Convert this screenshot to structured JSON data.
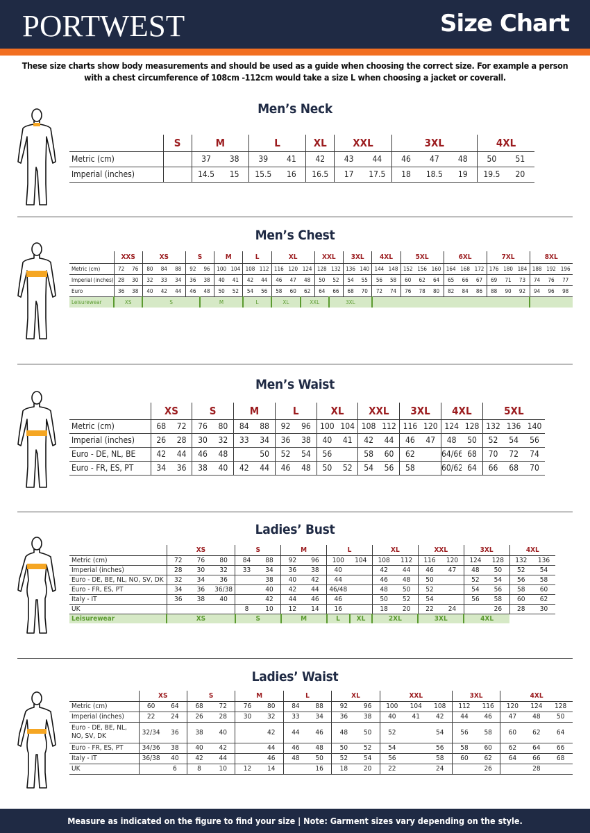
{
  "header": {
    "logo": "PORTWEST",
    "title": "Size Chart"
  },
  "intro": "These size charts show body measurements and should be used as a guide when choosing the correct size. For example a person with a chest circumference of 108cm -112cm would take a size L when choosing a jacket or coverall.",
  "colors": {
    "navy": "#1f2a44",
    "orange": "#f26f21",
    "size_red": "#9b1b1e",
    "leisure_green": "#5a9a2f",
    "leisure_bg": "#d6e9c6",
    "figure_band": "#f5a623"
  },
  "tables": [
    {
      "title": "Men’s Neck",
      "figure": "male-figure-neck",
      "groups": [
        {
          "label": "S",
          "span": 1
        },
        {
          "label": "M",
          "span": 2
        },
        {
          "label": "L",
          "span": 2
        },
        {
          "label": "XL",
          "span": 1
        },
        {
          "label": "XXL",
          "span": 2
        },
        {
          "label": "3XL",
          "span": 3
        },
        {
          "label": "4XL",
          "span": 2
        }
      ],
      "rows": [
        {
          "label": "Metric  (cm)",
          "cells": [
            "",
            "37",
            "38",
            "39",
            "41",
            "42",
            "43",
            "44",
            "46",
            "47",
            "48",
            "50",
            "51"
          ]
        },
        {
          "label": "Imperial (inches)",
          "cells": [
            "",
            "14.5",
            "15",
            "15.5",
            "16",
            "16.5",
            "17",
            "17.5",
            "18",
            "18.5",
            "19",
            "19.5",
            "20"
          ]
        }
      ]
    },
    {
      "title": "Men’s Chest",
      "figure": "male-figure-chest",
      "groups": [
        {
          "label": "XXS",
          "span": 2
        },
        {
          "label": "XS",
          "span": 3
        },
        {
          "label": "S",
          "span": 2
        },
        {
          "label": "M",
          "span": 2
        },
        {
          "label": "L",
          "span": 2
        },
        {
          "label": "XL",
          "span": 3
        },
        {
          "label": "XXL",
          "span": 2
        },
        {
          "label": "3XL",
          "span": 2
        },
        {
          "label": "4XL",
          "span": 2
        },
        {
          "label": "5XL",
          "span": 3
        },
        {
          "label": "6XL",
          "span": 3
        },
        {
          "label": "7XL",
          "span": 3
        },
        {
          "label": "8XL",
          "span": 3
        }
      ],
      "rows": [
        {
          "label": "Metric (cm)",
          "cells": [
            "72",
            "76",
            "80",
            "84",
            "88",
            "92",
            "96",
            "100",
            "104",
            "108",
            "112",
            "116",
            "120",
            "124",
            "128",
            "132",
            "136",
            "140",
            "144",
            "148",
            "152",
            "156",
            "160",
            "164",
            "168",
            "172",
            "176",
            "180",
            "184",
            "188",
            "192",
            "196"
          ]
        },
        {
          "label": "Imperial (inches)",
          "cells": [
            "28",
            "30",
            "32",
            "33",
            "34",
            "36",
            "38",
            "40",
            "41",
            "42",
            "44",
            "46",
            "47",
            "48",
            "50",
            "52",
            "54",
            "55",
            "56",
            "58",
            "60",
            "62",
            "64",
            "65",
            "66",
            "67",
            "69",
            "71",
            "73",
            "74",
            "76",
            "77"
          ]
        },
        {
          "label": "Euro",
          "cells": [
            "36",
            "38",
            "40",
            "42",
            "44",
            "46",
            "48",
            "50",
            "52",
            "54",
            "56",
            "58",
            "60",
            "62",
            "64",
            "66",
            "68",
            "70",
            "72",
            "74",
            "76",
            "78",
            "80",
            "82",
            "84",
            "86",
            "88",
            "90",
            "92",
            "94",
            "96",
            "98"
          ]
        }
      ],
      "leisurewear": {
        "label": "Leisurewear",
        "groups": [
          {
            "label": "XS",
            "span": 2
          },
          {
            "label": "S",
            "span": 4
          },
          {
            "label": "M",
            "span": 3
          },
          {
            "label": "L",
            "span": 2
          },
          {
            "label": "XL",
            "span": 2
          },
          {
            "label": "XXL",
            "span": 2
          },
          {
            "label": "3XL",
            "span": 3
          },
          {
            "label": "",
            "span": 11
          },
          {
            "label": "",
            "span": 3
          }
        ]
      }
    },
    {
      "title": "Men’s Waist",
      "figure": "male-figure-waist",
      "groups": [
        {
          "label": "XS",
          "span": 2
        },
        {
          "label": "S",
          "span": 2
        },
        {
          "label": "M",
          "span": 2
        },
        {
          "label": "L",
          "span": 2
        },
        {
          "label": "XL",
          "span": 2
        },
        {
          "label": "XXL",
          "span": 2
        },
        {
          "label": "3XL",
          "span": 2
        },
        {
          "label": "4XL",
          "span": 2
        },
        {
          "label": "5XL",
          "span": 3
        }
      ],
      "rows": [
        {
          "label": "Metric  (cm)",
          "cells": [
            "68",
            "72",
            "76",
            "80",
            "84",
            "88",
            "92",
            "96",
            "100",
            "104",
            "108",
            "112",
            "116",
            "120",
            "124",
            "128",
            "132",
            "136",
            "140"
          ]
        },
        {
          "label": "Imperial (inches)",
          "cells": [
            "26",
            "28",
            "30",
            "32",
            "33",
            "34",
            "36",
            "38",
            "40",
            "41",
            "42",
            "44",
            "46",
            "47",
            "48",
            "50",
            "52",
            "54",
            "56"
          ]
        },
        {
          "label": "Euro - DE, NL, BE",
          "cells": [
            "42",
            "44",
            "46",
            "48",
            "",
            "50",
            "52",
            "54",
            "56",
            "",
            "58",
            "60",
            "62",
            "",
            "64/66",
            "68",
            "70",
            "72",
            "74"
          ]
        },
        {
          "label": "Euro - FR, ES, PT",
          "cells": [
            "34",
            "36",
            "38",
            "40",
            "42",
            "44",
            "46",
            "48",
            "50",
            "52",
            "54",
            "56",
            "58",
            "",
            "60/62",
            "64",
            "66",
            "68",
            "70"
          ]
        }
      ]
    },
    {
      "title": "Ladies’ Bust",
      "figure": "female-figure-bust",
      "groups": [
        {
          "label": "XS",
          "span": 3
        },
        {
          "label": "S",
          "span": 2
        },
        {
          "label": "M",
          "span": 2
        },
        {
          "label": "L",
          "span": 2
        },
        {
          "label": "XL",
          "span": 2
        },
        {
          "label": "XXL",
          "span": 2
        },
        {
          "label": "3XL",
          "span": 2
        },
        {
          "label": "4XL",
          "span": 2
        }
      ],
      "rows": [
        {
          "label": "Metric  (cm)",
          "cells": [
            "72",
            "76",
            "80",
            "84",
            "88",
            "92",
            "96",
            "100",
            "104",
            "108",
            "112",
            "116",
            "120",
            "124",
            "128",
            "132",
            "136"
          ]
        },
        {
          "label": "Imperial (inches)",
          "cells": [
            "28",
            "30",
            "32",
            "33",
            "34",
            "36",
            "38",
            "40",
            "",
            "42",
            "44",
            "46",
            "47",
            "48",
            "50",
            "52",
            "54"
          ]
        },
        {
          "label": "Euro -  DE, BE, NL, NO, SV, DK",
          "cells": [
            "32",
            "34",
            "36",
            "",
            "38",
            "40",
            "42",
            "44",
            "",
            "46",
            "48",
            "50",
            "",
            "52",
            "54",
            "56",
            "58"
          ]
        },
        {
          "label": "Euro - FR, ES, PT",
          "cells": [
            "34",
            "36",
            "36/38",
            "",
            "40",
            "42",
            "44",
            "46/48",
            "",
            "48",
            "50",
            "52",
            "",
            "54",
            "56",
            "58",
            "60"
          ]
        },
        {
          "label": "Italy - IT",
          "cells": [
            "36",
            "38",
            "40",
            "",
            "42",
            "44",
            "46",
            "46",
            "",
            "50",
            "52",
            "54",
            "",
            "56",
            "58",
            "60",
            "62"
          ]
        },
        {
          "label": "UK",
          "cells": [
            "",
            "",
            "",
            "8",
            "10",
            "12",
            "14",
            "16",
            "",
            "18",
            "20",
            "22",
            "24",
            "",
            "26",
            "28",
            "30"
          ]
        }
      ],
      "leisurewear": {
        "label": "Leisurewear",
        "bold": true,
        "groups": [
          {
            "label": "XS",
            "span": 3
          },
          {
            "label": "S",
            "span": 2
          },
          {
            "label": "M",
            "span": 2
          },
          {
            "label": "L",
            "span": 1
          },
          {
            "label": "XL",
            "span": 1
          },
          {
            "label": "2XL",
            "span": 2
          },
          {
            "label": "3XL",
            "span": 2
          },
          {
            "label": "4XL",
            "span": 2
          },
          {
            "label": "",
            "span": 2,
            "nofill": true
          }
        ]
      }
    },
    {
      "title": "Ladies’ Waist",
      "figure": "female-figure-waist",
      "groups": [
        {
          "label": "XS",
          "span": 2
        },
        {
          "label": "S",
          "span": 2
        },
        {
          "label": "M",
          "span": 2
        },
        {
          "label": "L",
          "span": 2
        },
        {
          "label": "XL",
          "span": 2
        },
        {
          "label": "XXL",
          "span": 3
        },
        {
          "label": "3XL",
          "span": 2
        },
        {
          "label": "4XL",
          "span": 3
        }
      ],
      "rows": [
        {
          "label": "Metric  (cm)",
          "cells": [
            "60",
            "64",
            "68",
            "72",
            "76",
            "80",
            "84",
            "88",
            "92",
            "96",
            "100",
            "104",
            "108",
            "112",
            "116",
            "120",
            "124",
            "128"
          ]
        },
        {
          "label": "Imperial (inches)",
          "cells": [
            "22",
            "24",
            "26",
            "28",
            "30",
            "32",
            "33",
            "34",
            "36",
            "38",
            "40",
            "41",
            "42",
            "44",
            "46",
            "47",
            "48",
            "50"
          ]
        },
        {
          "label": "Euro - DE, BE, NL, NO, SV, DK",
          "cells": [
            "32/34",
            "36",
            "38",
            "40",
            "",
            "42",
            "44",
            "46",
            "48",
            "50",
            "52",
            "",
            "54",
            "56",
            "58",
            "60",
            "62",
            "64"
          ]
        },
        {
          "label": "Euro - FR, ES, PT",
          "cells": [
            "34/36",
            "38",
            "40",
            "42",
            "",
            "44",
            "46",
            "48",
            "50",
            "52",
            "54",
            "",
            "56",
            "58",
            "60",
            "62",
            "64",
            "66"
          ]
        },
        {
          "label": "Italy - IT",
          "cells": [
            "36/38",
            "40",
            "42",
            "44",
            "",
            "46",
            "48",
            "50",
            "52",
            "54",
            "56",
            "",
            "58",
            "60",
            "62",
            "64",
            "66",
            "68"
          ]
        },
        {
          "label": "UK",
          "cells": [
            "",
            "6",
            "8",
            "10",
            "12",
            "14",
            "",
            "16",
            "18",
            "20",
            "22",
            "",
            "24",
            "",
            "26",
            "",
            "28",
            ""
          ]
        }
      ]
    }
  ],
  "footer": "Measure as indicated on the figure to find your size  |  Note: Garment sizes vary depending on the style."
}
